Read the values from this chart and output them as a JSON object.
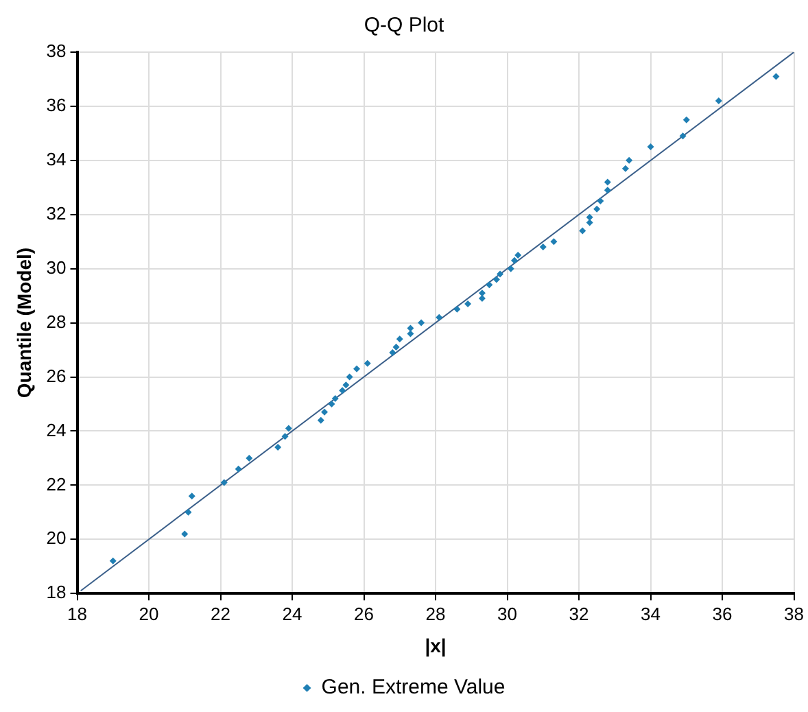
{
  "chart_data": {
    "type": "scatter",
    "title": "Q-Q Plot",
    "xlabel": "|x|",
    "ylabel": "Quantile (Model)",
    "xlim": [
      18,
      38
    ],
    "xticks": [
      18,
      20,
      22,
      24,
      26,
      28,
      30,
      32,
      34,
      36,
      38
    ],
    "ylim": [
      18,
      38
    ],
    "yticks": [
      18,
      20,
      22,
      24,
      26,
      28,
      30,
      32,
      34,
      36,
      38
    ],
    "grid": true,
    "legend": "bottom",
    "series": [
      {
        "name": "Gen. Extreme Value",
        "color": "#1f7fb4",
        "marker": "diamond",
        "x": [
          19.0,
          21.0,
          21.1,
          21.2,
          22.1,
          22.5,
          22.8,
          23.6,
          23.8,
          23.9,
          24.8,
          24.9,
          25.1,
          25.2,
          25.4,
          25.5,
          25.6,
          25.8,
          26.1,
          26.8,
          26.9,
          27.0,
          27.3,
          27.3,
          27.6,
          28.1,
          28.6,
          28.9,
          29.3,
          29.3,
          29.5,
          29.7,
          29.8,
          30.1,
          30.2,
          30.3,
          31.0,
          31.3,
          32.1,
          32.3,
          32.3,
          32.5,
          32.6,
          32.8,
          32.8,
          33.3,
          33.4,
          34.0,
          34.9,
          35.0,
          35.9,
          37.5
        ],
        "values": [
          19.2,
          20.2,
          21.0,
          21.6,
          22.1,
          22.6,
          23.0,
          23.4,
          23.8,
          24.1,
          24.4,
          24.7,
          25.0,
          25.2,
          25.5,
          25.7,
          26.0,
          26.3,
          26.5,
          26.9,
          27.1,
          27.4,
          27.6,
          27.8,
          28.0,
          28.2,
          28.5,
          28.7,
          28.9,
          29.1,
          29.4,
          29.6,
          29.8,
          30.0,
          30.3,
          30.5,
          30.8,
          31.0,
          31.4,
          31.7,
          31.9,
          32.2,
          32.5,
          32.9,
          33.2,
          33.7,
          34.0,
          34.5,
          34.9,
          35.5,
          36.2,
          37.1
        ]
      },
      {
        "type": "line",
        "color": "#3a5f8a",
        "x": [
          18.1,
          38
        ],
        "values": [
          18.1,
          38
        ]
      }
    ]
  }
}
